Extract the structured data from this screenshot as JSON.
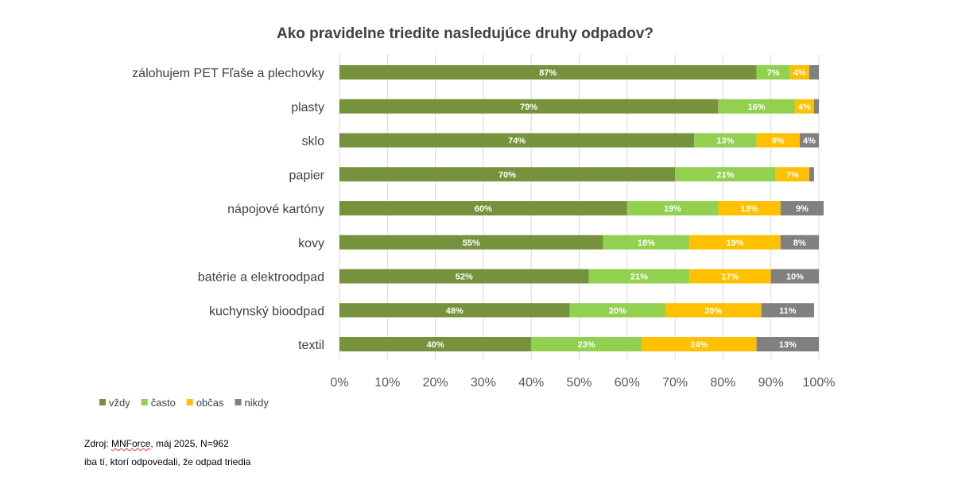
{
  "source": {
    "line1_prefix": "Zdroj: ",
    "line1_brand": "MNForce",
    "line1_suffix": ", máj 2025, N=962",
    "line2": "iba tí, ktorí odpovedali, že odpad triedia"
  },
  "colors": {
    "vzdy": "#76923c",
    "casto": "#92d050",
    "obcas": "#ffc000",
    "nikdy": "#808080",
    "grid": "#d9d9d9",
    "text": "#404040"
  },
  "chart_data": {
    "type": "bar",
    "orientation": "horizontal",
    "stacked": true,
    "title": "Ako pravidelne triedite nasledujúce druhy odpadov?",
    "categories": [
      "zálohujem PET Fľaše a plechovky",
      "plasty",
      "sklo",
      "papier",
      "nápojové kartóny",
      "kovy",
      "batérie a elektroodpad",
      "kuchynský bioodpad",
      "textil"
    ],
    "series": [
      {
        "name": "vždy",
        "values": [
          87,
          79,
          74,
          70,
          60,
          55,
          52,
          48,
          40
        ]
      },
      {
        "name": "často",
        "values": [
          7,
          16,
          13,
          21,
          19,
          18,
          21,
          20,
          23
        ]
      },
      {
        "name": "občas",
        "values": [
          4,
          4,
          9,
          7,
          13,
          19,
          17,
          20,
          24
        ]
      },
      {
        "name": "nikdy",
        "values": [
          2,
          1,
          4,
          1,
          9,
          8,
          10,
          11,
          13
        ]
      }
    ],
    "value_labels": [
      [
        "87%",
        "7%",
        "4%",
        ""
      ],
      [
        "79%",
        "16%",
        "4%",
        ""
      ],
      [
        "74%",
        "13%",
        "9%",
        "4%"
      ],
      [
        "70%",
        "21%",
        "7%",
        ""
      ],
      [
        "60%",
        "19%",
        "13%",
        "9%"
      ],
      [
        "55%",
        "18%",
        "19%",
        "8%"
      ],
      [
        "52%",
        "21%",
        "17%",
        "10%"
      ],
      [
        "48%",
        "20%",
        "20%",
        "11%"
      ],
      [
        "40%",
        "23%",
        "24%",
        "13%"
      ]
    ],
    "xlim": [
      0,
      100
    ],
    "xticks": [
      "0%",
      "10%",
      "20%",
      "30%",
      "40%",
      "50%",
      "60%",
      "70%",
      "80%",
      "90%",
      "100%"
    ],
    "grid": true,
    "legend": "bottom-left"
  }
}
